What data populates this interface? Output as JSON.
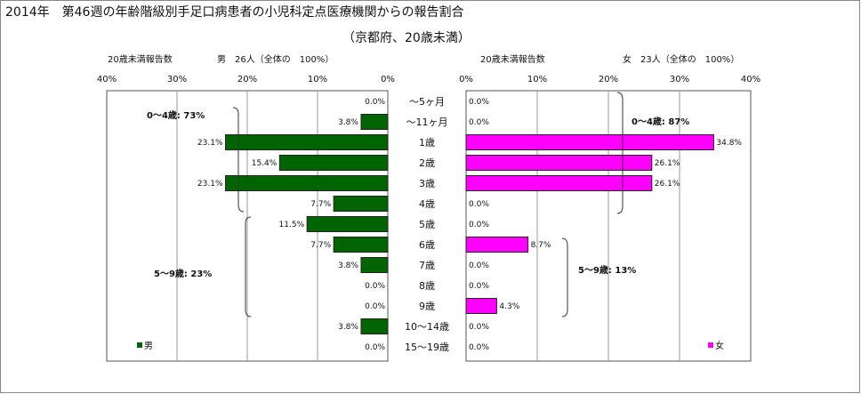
{
  "page": {
    "title": "2014年　第46週の年齢階級別手足口病患者の小児科定点医療機関からの報告割合",
    "subtitle": "（京都府、20歳未満）"
  },
  "colors": {
    "male": "#006400",
    "female": "#ff00ff",
    "grid": "#999999",
    "border": "#555555"
  },
  "chart_data": [
    {
      "type": "bar",
      "orientation": "horizontal",
      "direction": "right-to-left",
      "header_label": "20歳未満報告数",
      "header_count": "男　26人（全体の　100%）",
      "legend": "男",
      "bracket_labels": [
        "0～4歳: 73%",
        "5～9歳: 23%"
      ],
      "xticks": [
        "40%",
        "30%",
        "20%",
        "10%",
        "0%"
      ],
      "xlim": [
        0,
        40
      ],
      "grid": true,
      "categories": [
        "～5ヶ月",
        "～11ヶ月",
        "1歳",
        "2歳",
        "3歳",
        "4歳",
        "5歳",
        "6歳",
        "7歳",
        "8歳",
        "9歳",
        "10～14歳",
        "15～19歳"
      ],
      "values": [
        0.0,
        3.8,
        23.1,
        15.4,
        23.1,
        7.7,
        11.5,
        7.7,
        3.8,
        0.0,
        0.0,
        3.8,
        0.0
      ],
      "value_labels": [
        "0.0%",
        "3.8%",
        "23.1%",
        "15.4%",
        "23.1%",
        "7.7%",
        "11.5%",
        "7.7%",
        "3.8%",
        "0.0%",
        "0.0%",
        "3.8%",
        "0.0%"
      ]
    },
    {
      "type": "bar",
      "orientation": "horizontal",
      "direction": "left-to-right",
      "header_label": "20歳未満報告数",
      "header_count": "女　23人（全体の　100%）",
      "legend": "女",
      "bracket_labels": [
        "0～4歳: 87%",
        "5～9歳: 13%"
      ],
      "xticks": [
        "0%",
        "10%",
        "20%",
        "30%",
        "40%"
      ],
      "xlim": [
        0,
        40
      ],
      "grid": true,
      "categories": [
        "～5ヶ月",
        "～11ヶ月",
        "1歳",
        "2歳",
        "3歳",
        "4歳",
        "5歳",
        "6歳",
        "7歳",
        "8歳",
        "9歳",
        "10～14歳",
        "15～19歳"
      ],
      "values": [
        0.0,
        0.0,
        34.8,
        26.1,
        26.1,
        0.0,
        0.0,
        8.7,
        0.0,
        0.0,
        4.3,
        0.0,
        0.0
      ],
      "value_labels": [
        "0.0%",
        "0.0%",
        "34.8%",
        "26.1%",
        "26.1%",
        "0.0%",
        "0.0%",
        "8.7%",
        "0.0%",
        "0.0%",
        "4.3%",
        "0.0%",
        "0.0%"
      ]
    }
  ]
}
